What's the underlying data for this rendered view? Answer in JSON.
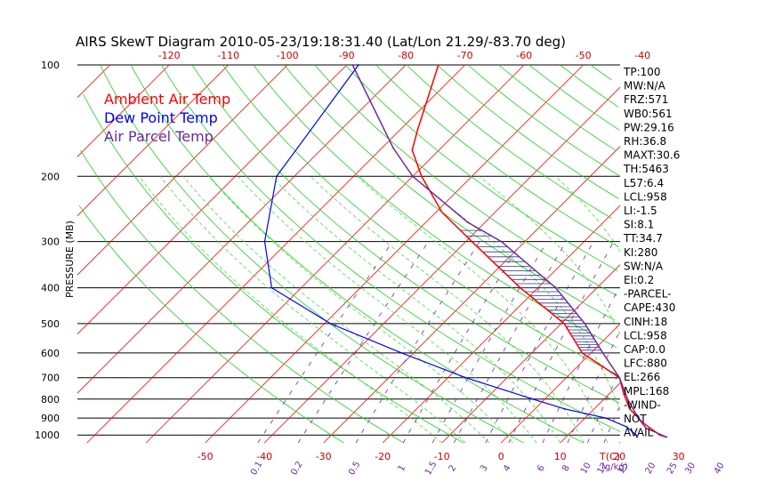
{
  "chart_data": {
    "type": "line",
    "title": "AIRS SkewT Diagram 2010-05-23/19:18:31.40 (Lat/Lon 21.29/-83.70 deg)",
    "ylabel": "PRESSURE (MB)",
    "pressure_ticks": [
      "100",
      "200",
      "300",
      "400",
      "500",
      "600",
      "700",
      "800",
      "900",
      "1000"
    ],
    "temp_ticks_top": [
      "-120",
      "-110",
      "-100",
      "-90",
      "-80",
      "-70",
      "-60",
      "-50",
      "-40"
    ],
    "temp_ticks_bottom": [
      "-50",
      "-40",
      "-30",
      "-20",
      "-10",
      "0",
      "10",
      "20",
      "30"
    ],
    "temp_unit_label": "T(C)",
    "mixing_ratio_labels": [
      "0.1",
      "0.2",
      "0.5",
      "1",
      "1.5",
      "2",
      "3",
      "4",
      "6",
      "8",
      "10",
      "12",
      "15",
      "20",
      "25",
      "30",
      "40"
    ],
    "mixing_ratio_unit": "(g/kg)",
    "ylim": [
      1050,
      100
    ],
    "legend": [
      {
        "name": "Ambient Air Temp",
        "color": "#ff0000"
      },
      {
        "name": "Dew Point Temp",
        "color": "#0000ff"
      },
      {
        "name": "Air Parcel Temp",
        "color": "#6a2a9e"
      }
    ],
    "series": [
      {
        "name": "Ambient Air Temp",
        "pressure": [
          1013,
          1000,
          925,
          850,
          775,
          700,
          600,
          500,
          400,
          300,
          250,
          200,
          170,
          150,
          100
        ],
        "temperature": [
          27.0,
          25.5,
          20.5,
          16.0,
          12.5,
          9.0,
          -1.5,
          -9.5,
          -23.0,
          -39.0,
          -49.0,
          -58.5,
          -64.5,
          -67.0,
          -74.5
        ]
      },
      {
        "name": "Dew Point Temp",
        "pressure": [
          1013,
          1000,
          950,
          900,
          850,
          800,
          700,
          600,
          500,
          400,
          300,
          200,
          100
        ],
        "temperature": [
          22.0,
          21.5,
          18.5,
          13.5,
          5.0,
          -2.0,
          -17.0,
          -32.0,
          -49.0,
          -65.0,
          -74.0,
          -83.0,
          -88.0
        ]
      },
      {
        "name": "Air Parcel Temp",
        "pressure": [
          1013,
          958,
          900,
          800,
          700,
          600,
          500,
          400,
          300,
          266,
          200,
          168,
          100
        ],
        "temperature": [
          27.0,
          22.0,
          19.0,
          14.0,
          9.0,
          2.0,
          -6.0,
          -17.0,
          -34.0,
          -43.0,
          -60.0,
          -68.0,
          -89.0
        ]
      }
    ],
    "indices": [
      "TP:100",
      "MW:N/A",
      "FRZ:571",
      "WB0:561",
      "PW:29.16",
      "RH:36.8",
      "MAXT:30.6",
      "TH:5463",
      "L57:6.4",
      "LCL:958",
      "LI:-1.5",
      "SI:8.1",
      "TT:34.7",
      "KI:280",
      "SW:N/A",
      "EI:0.2",
      "-PARCEL-",
      "CAPE:430",
      "CINH:18",
      "LCL:958",
      "CAP:0.0",
      "LFC:880",
      "EL:266",
      "MPL:168",
      "-WIND-",
      "NOT",
      "AVAIL"
    ],
    "grid": true
  }
}
